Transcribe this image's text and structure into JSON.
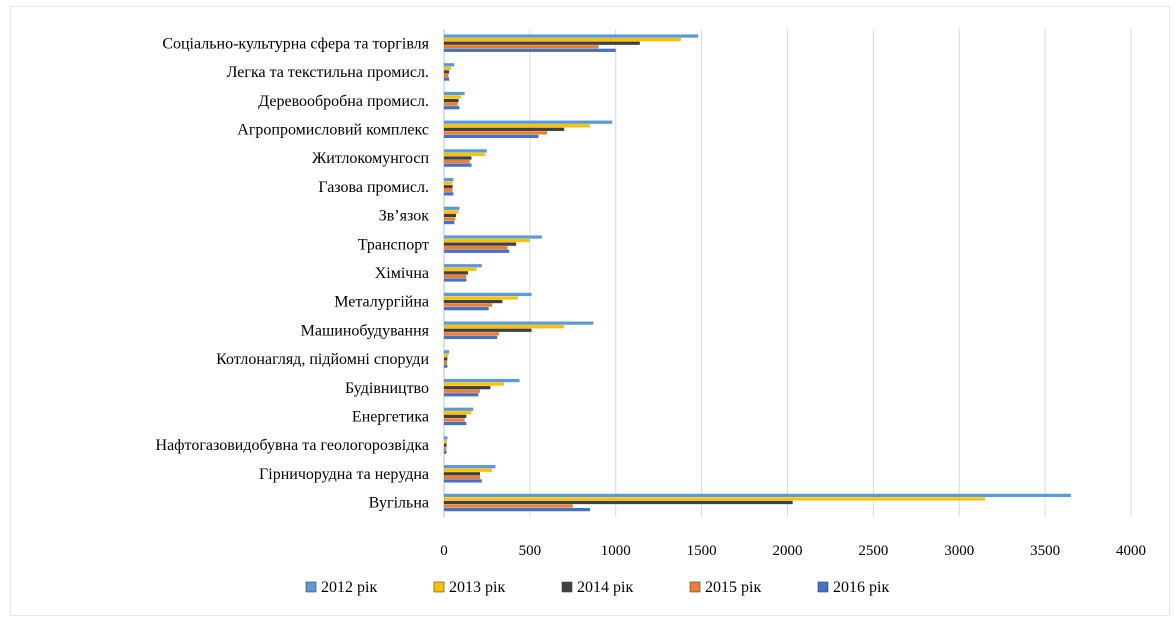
{
  "chart_data": {
    "type": "bar",
    "orientation": "horizontal",
    "categories": [
      "Соціально-культурна сфера та торгівля",
      "Легка та текстильна промисл.",
      "Деревообробна промисл.",
      "Агропромисловий комплекс",
      "Житлокомунгосп",
      "Газова промисл.",
      "Зв’язок",
      "Транспорт",
      "Хімічна",
      "Металургійна",
      "Машинобудування",
      "Котлонагляд, підйомні споруди",
      "Будівництво",
      "Енергетика",
      "Нафтогазовидобувна та геологорозвідка",
      "Гірничорудна та нерудна",
      "Вугільна"
    ],
    "series": [
      {
        "name": "2012 рік",
        "color": "#5b9bd5",
        "values": [
          1480,
          60,
          120,
          980,
          250,
          55,
          90,
          570,
          220,
          510,
          870,
          30,
          440,
          170,
          20,
          300,
          3650
        ]
      },
      {
        "name": "2013 рік",
        "color": "#ffc000",
        "values": [
          1380,
          40,
          100,
          850,
          240,
          50,
          85,
          500,
          190,
          430,
          700,
          25,
          350,
          160,
          18,
          280,
          3150
        ]
      },
      {
        "name": "2014 рік",
        "color": "#404040",
        "values": [
          1140,
          30,
          85,
          700,
          160,
          50,
          70,
          420,
          140,
          340,
          510,
          20,
          270,
          130,
          15,
          210,
          2030
        ]
      },
      {
        "name": "2015 рік",
        "color": "#ed7d31",
        "values": [
          900,
          25,
          80,
          600,
          150,
          50,
          65,
          370,
          130,
          280,
          320,
          18,
          210,
          120,
          14,
          210,
          750
        ]
      },
      {
        "name": "2016 рік",
        "color": "#4472c4",
        "values": [
          1000,
          30,
          90,
          550,
          160,
          55,
          60,
          380,
          130,
          260,
          310,
          20,
          200,
          130,
          15,
          220,
          850
        ]
      }
    ],
    "xlim": [
      0,
      4000
    ],
    "x_ticks": [
      "0",
      "500",
      "1000",
      "1500",
      "2000",
      "2500",
      "3000",
      "3500",
      "4000"
    ],
    "grid": true,
    "legend": "bottom",
    "title": "",
    "xlabel": "",
    "ylabel": ""
  }
}
